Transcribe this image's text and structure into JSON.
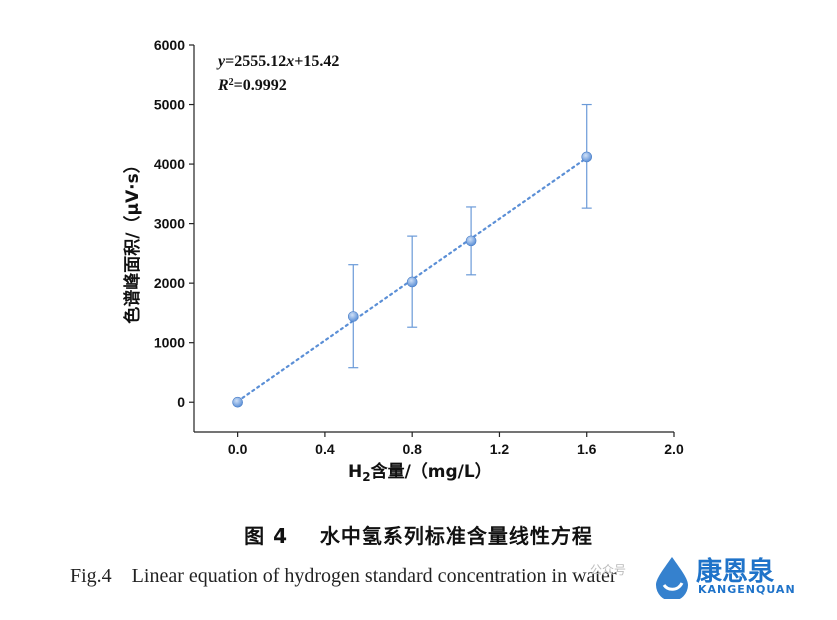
{
  "chart_data": {
    "type": "scatter",
    "xlabel_prefix": "H",
    "xlabel_sub": "2",
    "xlabel_rest": "含量/（mg/L）",
    "ylabel": "色谱峰面积/（μV·s）",
    "xlim": [
      -0.2,
      2.0
    ],
    "ylim": [
      -500,
      6000
    ],
    "xticks": [
      "0.0",
      "0.4",
      "0.8",
      "1.2",
      "1.6",
      "2.0"
    ],
    "yticks": [
      "0",
      "1000",
      "2000",
      "3000",
      "4000",
      "5000",
      "6000"
    ],
    "points": [
      {
        "x": 0.0,
        "y": 0,
        "err_low": 0,
        "err_high": 0
      },
      {
        "x": 0.53,
        "y": 1440,
        "err_low": 580,
        "err_high": 2310
      },
      {
        "x": 0.8,
        "y": 2020,
        "err_low": 1260,
        "err_high": 2790
      },
      {
        "x": 1.07,
        "y": 2710,
        "err_low": 2140,
        "err_high": 3280
      },
      {
        "x": 1.6,
        "y": 4120,
        "err_low": 3260,
        "err_high": 5000
      }
    ],
    "fit": {
      "slope": 2555.12,
      "intercept": 15.42,
      "x_range": [
        0.0,
        1.6
      ]
    },
    "equation_text": "y=2555.12x+15.42",
    "r2_text": "R²=0.9992",
    "point_color": "#5b8fd6",
    "grid": false
  },
  "caption": {
    "cn": "图 4    水中氢系列标准含量线性方程",
    "en": "Fig.4    Linear equation of hydrogen standard concentration in water"
  },
  "watermark": {
    "brand_cn": "康恩泉",
    "brand_en": "KANGENQUAN",
    "prefix": "公众号"
  }
}
